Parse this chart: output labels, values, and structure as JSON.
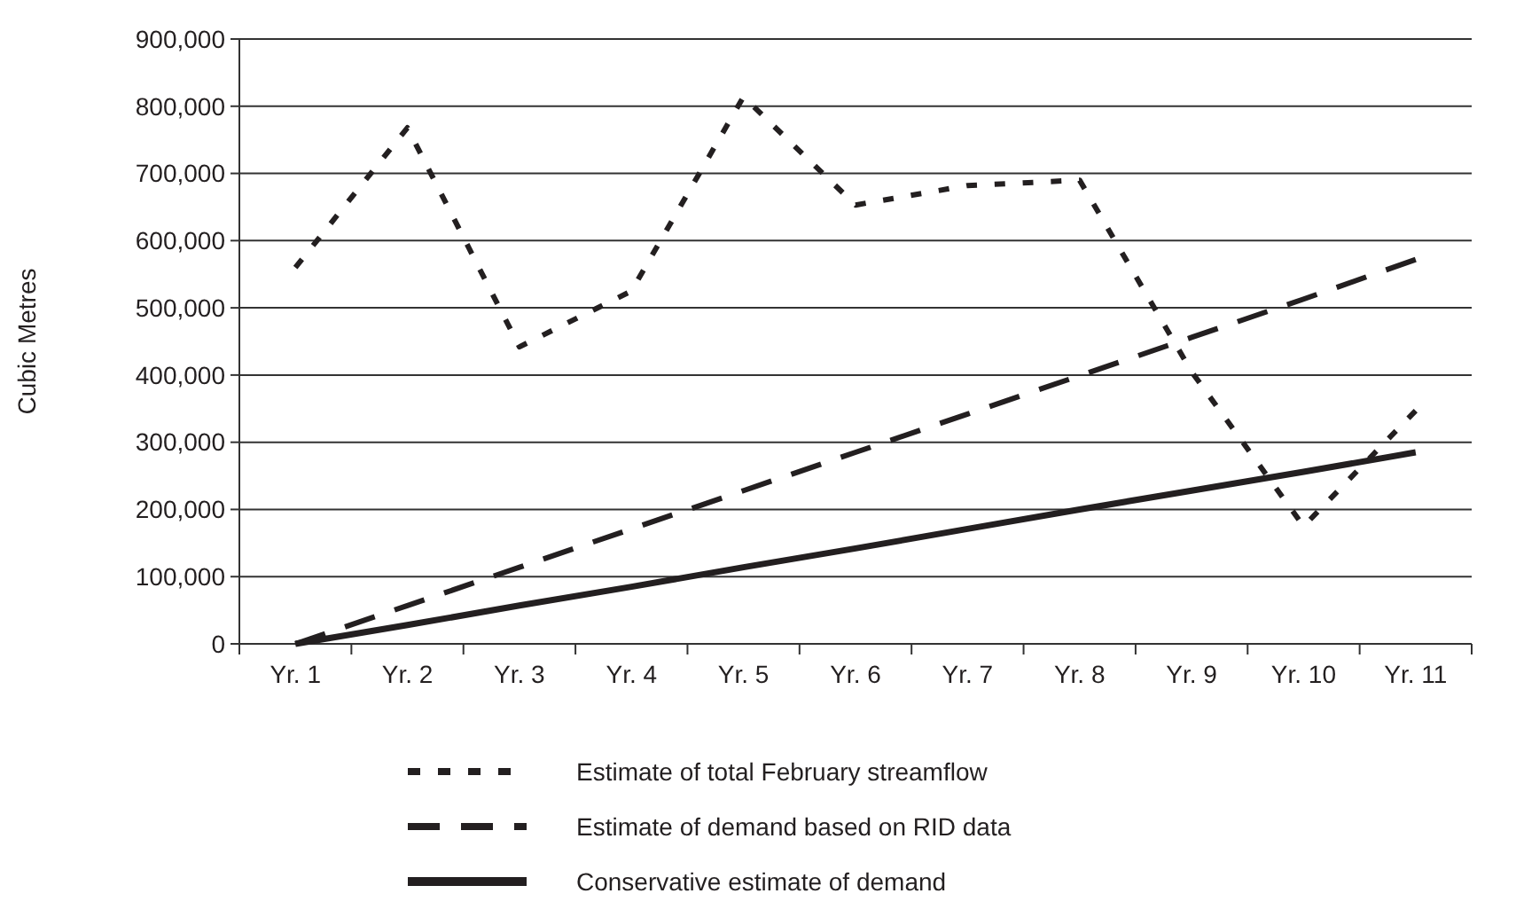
{
  "chart_data": {
    "type": "line",
    "ylabel": "Cubic Metres",
    "categories": [
      "Yr. 1",
      "Yr. 2",
      "Yr. 3",
      "Yr. 4",
      "Yr. 5",
      "Yr. 6",
      "Yr. 7",
      "Yr. 8",
      "Yr. 9",
      "Yr. 10",
      "Yr. 11"
    ],
    "ylim": [
      0,
      900000
    ],
    "yticks": [
      {
        "value": 0,
        "label": "0"
      },
      {
        "value": 100000,
        "label": "100,000"
      },
      {
        "value": 200000,
        "label": "200,000"
      },
      {
        "value": 300000,
        "label": "300,000"
      },
      {
        "value": 400000,
        "label": "400,000"
      },
      {
        "value": 500000,
        "label": "500,000"
      },
      {
        "value": 600000,
        "label": "600,000"
      },
      {
        "value": 700000,
        "label": "700,000"
      },
      {
        "value": 800000,
        "label": "800,000"
      },
      {
        "value": 900000,
        "label": "900,000"
      }
    ],
    "grid": "y",
    "legend": "bottom",
    "marker": "none",
    "series": [
      {
        "name": "Estimate of total February streamflow",
        "color": "#231f20",
        "line_style": "dotted",
        "values": [
          560000,
          768000,
          442000,
          525000,
          814000,
          653000,
          682000,
          690000,
          405000,
          175000,
          347000
        ]
      },
      {
        "name": "Estimate of demand based on RID data",
        "color": "#231f20",
        "line_style": "dashed",
        "values": [
          0,
          57000,
          114000,
          171000,
          228000,
          285000,
          342000,
          399000,
          456000,
          513000,
          572000
        ]
      },
      {
        "name": "Conservative estimate of demand",
        "color": "#231f20",
        "line_style": "solid",
        "values": [
          0,
          28000,
          57000,
          85000,
          114000,
          142000,
          171000,
          200000,
          228000,
          256000,
          285000
        ]
      }
    ]
  }
}
